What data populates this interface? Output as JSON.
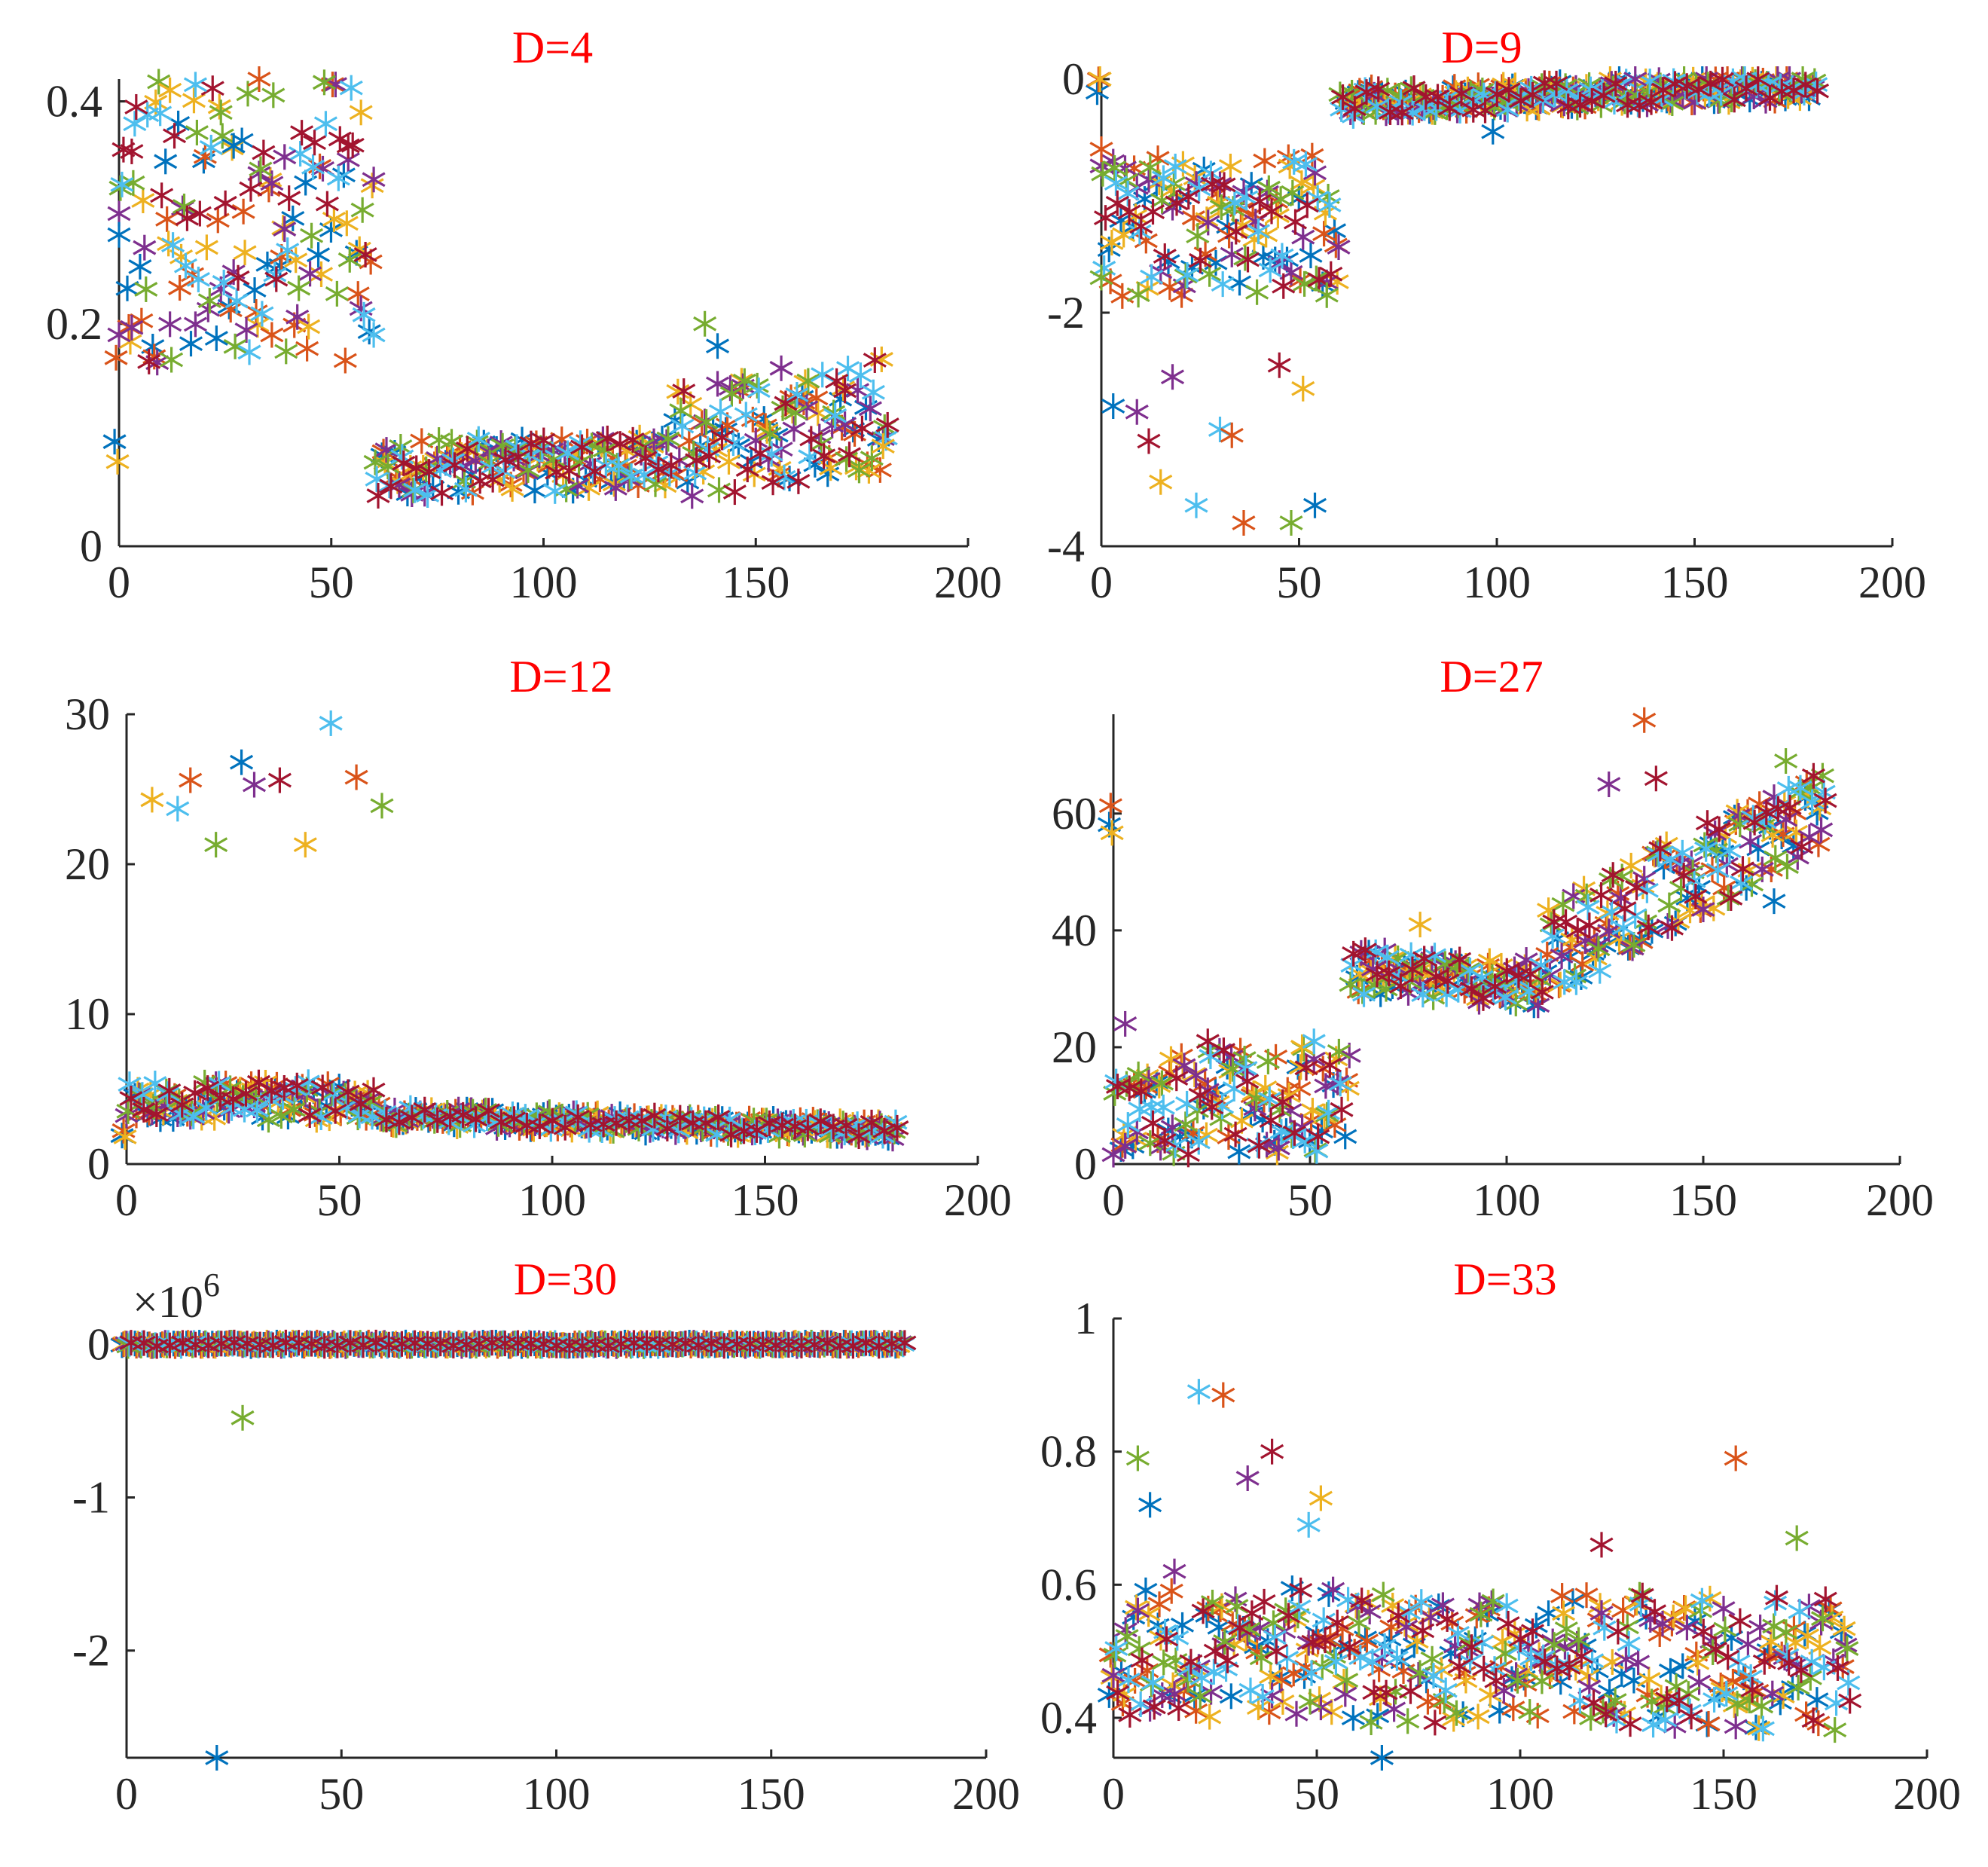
{
  "figure": {
    "series_colors": [
      "#0072BD",
      "#D95319",
      "#EDB120",
      "#7E2F8E",
      "#77AC30",
      "#4DBEEE",
      "#A2142F"
    ],
    "marker": "asterisk"
  },
  "chart_data": [
    {
      "type": "scatter",
      "title": "D=4",
      "xlim": [
        0,
        200
      ],
      "ylim": [
        0,
        0.42
      ],
      "xticks": [
        0,
        50,
        100,
        150,
        200
      ],
      "xtick_labels": [
        "0",
        "50",
        "100",
        "150",
        "200"
      ],
      "yticks": [
        0,
        0.2,
        0.4
      ],
      "ytick_labels": [
        "0",
        "0.2",
        "0.4"
      ],
      "x_start": 0,
      "x_step": 3,
      "x_count": 61,
      "series_count": 7,
      "seed": 11,
      "segments": [
        {
          "x0": 0,
          "x1": 60,
          "y0": 0.29,
          "y1": 0.29,
          "spread": 0.13
        },
        {
          "x0": 60,
          "x1": 130,
          "y0": 0.07,
          "y1": 0.075,
          "spread": 0.025
        },
        {
          "x0": 130,
          "x1": 182,
          "y0": 0.09,
          "y1": 0.12,
          "spread": 0.05
        }
      ],
      "highlights": [
        [
          0,
          0.28
        ],
        [
          0,
          0.19
        ],
        [
          3,
          0.355
        ],
        [
          12,
          0.41
        ],
        [
          18,
          0.415
        ],
        [
          33,
          0.42
        ],
        [
          24,
          0.39
        ],
        [
          27,
          0.36
        ],
        [
          39,
          0.35
        ],
        [
          54,
          0.36
        ],
        [
          57,
          0.39
        ],
        [
          60,
          0.19
        ],
        [
          36,
          0.19
        ],
        [
          138,
          0.2
        ],
        [
          141,
          0.18
        ],
        [
          156,
          0.16
        ],
        [
          171,
          0.14
        ],
        [
          180,
          0.09
        ]
      ]
    },
    {
      "type": "scatter",
      "title": "D=9",
      "xlim": [
        0,
        200
      ],
      "ylim": [
        -4,
        0
      ],
      "xticks": [
        0,
        50,
        100,
        150,
        200
      ],
      "xtick_labels": [
        "0",
        "50",
        "100",
        "150",
        "200"
      ],
      "yticks": [
        -4,
        -2,
        0
      ],
      "ytick_labels": [
        "-4",
        "-2",
        "0"
      ],
      "x_start": 0,
      "x_step": 3,
      "x_count": 61,
      "series_count": 7,
      "seed": 23,
      "segments": [
        {
          "x0": 0,
          "x1": 60,
          "y0": -1.3,
          "y1": -1.2,
          "spread": 0.6
        },
        {
          "x0": 60,
          "x1": 182,
          "y0": -0.2,
          "y1": -0.05,
          "spread": 0.12
        }
      ],
      "highlights": [
        [
          0,
          -0.6
        ],
        [
          0,
          -1.7
        ],
        [
          3,
          -2.8
        ],
        [
          9,
          -2.85
        ],
        [
          12,
          -3.1
        ],
        [
          15,
          -3.45
        ],
        [
          24,
          -3.65
        ],
        [
          36,
          -3.8
        ],
        [
          48,
          -3.8
        ],
        [
          54,
          -3.65
        ],
        [
          18,
          -2.55
        ],
        [
          45,
          -2.45
        ],
        [
          51,
          -2.65
        ],
        [
          30,
          -3.0
        ],
        [
          33,
          -3.05
        ],
        [
          57,
          -1.85
        ],
        [
          99,
          -0.45
        ],
        [
          135,
          0.0
        ]
      ]
    },
    {
      "type": "scatter",
      "title": "D=12",
      "xlim": [
        0,
        200
      ],
      "ylim": [
        0,
        30
      ],
      "xticks": [
        0,
        50,
        100,
        150,
        200
      ],
      "xtick_labels": [
        "0",
        "50",
        "100",
        "150",
        "200"
      ],
      "yticks": [
        0,
        10,
        20,
        30
      ],
      "ytick_labels": [
        "0",
        "10",
        "20",
        "30"
      ],
      "x_start": 0,
      "x_step": 3,
      "x_count": 61,
      "series_count": 7,
      "seed": 37,
      "segments": [
        {
          "x0": 0,
          "x1": 60,
          "y0": 4.2,
          "y1": 4.2,
          "spread": 1.3
        },
        {
          "x0": 60,
          "x1": 182,
          "y0": 3.2,
          "y1": 2.2,
          "spread": 0.6
        }
      ],
      "highlights": [
        [
          6,
          24.3
        ],
        [
          12,
          23.7
        ],
        [
          15,
          25.6
        ],
        [
          21,
          21.3
        ],
        [
          27,
          26.8
        ],
        [
          30,
          25.3
        ],
        [
          36,
          25.6
        ],
        [
          42,
          21.3
        ],
        [
          48,
          29.4
        ],
        [
          54,
          25.8
        ],
        [
          60,
          23.9
        ]
      ]
    },
    {
      "type": "scatter",
      "title": "D=27",
      "xlim": [
        0,
        200
      ],
      "ylim": [
        0,
        77
      ],
      "xticks": [
        0,
        50,
        100,
        150,
        200
      ],
      "xtick_labels": [
        "0",
        "50",
        "100",
        "150",
        "200"
      ],
      "yticks": [
        0,
        20,
        40,
        60
      ],
      "ytick_labels": [
        "0",
        "20",
        "40",
        "60"
      ],
      "x_start": 0,
      "x_step": 3,
      "x_count": 61,
      "series_count": 7,
      "seed": 53,
      "segments": [
        {
          "x0": 0,
          "x1": 60,
          "y0": 10,
          "y1": 11,
          "spread": 9
        },
        {
          "x0": 60,
          "x1": 110,
          "y0": 33,
          "y1": 31,
          "spread": 4
        },
        {
          "x0": 110,
          "x1": 182,
          "y0": 36,
          "y1": 62,
          "spread": 8
        }
      ],
      "highlights": [
        [
          3,
          24
        ],
        [
          24,
          21
        ],
        [
          48,
          20
        ],
        [
          51,
          21
        ],
        [
          135,
          76
        ],
        [
          171,
          69
        ],
        [
          168,
          45
        ],
        [
          126,
          65
        ],
        [
          138,
          66
        ],
        [
          78,
          41
        ]
      ]
    },
    {
      "type": "scatter",
      "title": "D=30",
      "xlim": [
        0,
        200
      ],
      "ylim": [
        -2.7,
        0.08
      ],
      "xticks": [
        0,
        50,
        100,
        150,
        200
      ],
      "xtick_labels": [
        "0",
        "50",
        "100",
        "150",
        "200"
      ],
      "yticks": [
        -2,
        -1,
        0
      ],
      "ytick_labels": [
        "-2",
        "-1",
        "0"
      ],
      "axis_multiplier_prefix": "×10",
      "axis_multiplier_exponent": "6",
      "x_start": 0,
      "x_step": 3,
      "x_count": 61,
      "series_count": 7,
      "seed": 71,
      "segments": [
        {
          "x0": 0,
          "x1": 182,
          "y0": 0,
          "y1": 0,
          "spread": 0.012
        }
      ],
      "highlights": [
        [
          27,
          -0.48
        ],
        [
          21,
          -2.7
        ]
      ]
    },
    {
      "type": "scatter",
      "title": "D=33",
      "xlim": [
        0,
        200
      ],
      "ylim": [
        0.34,
        1.0
      ],
      "xticks": [
        0,
        50,
        100,
        150,
        200
      ],
      "xtick_labels": [
        "0",
        "50",
        "100",
        "150",
        "200"
      ],
      "yticks": [
        0.4,
        0.6,
        0.8,
        1
      ],
      "ytick_labels": [
        "0.4",
        "0.6",
        "0.8",
        "1"
      ],
      "x_start": 0,
      "x_step": 3,
      "x_count": 61,
      "series_count": 7,
      "seed": 89,
      "segments": [
        {
          "x0": 0,
          "x1": 182,
          "y0": 0.5,
          "y1": 0.48,
          "spread": 0.1
        }
      ],
      "highlights": [
        [
          21,
          0.89
        ],
        [
          27,
          0.885
        ],
        [
          6,
          0.79
        ],
        [
          9,
          0.72
        ],
        [
          33,
          0.76
        ],
        [
          39,
          0.8
        ],
        [
          51,
          0.73
        ],
        [
          48,
          0.69
        ],
        [
          153,
          0.79
        ],
        [
          168,
          0.67
        ],
        [
          66,
          0.34
        ],
        [
          15,
          0.62
        ],
        [
          120,
          0.66
        ]
      ]
    }
  ]
}
